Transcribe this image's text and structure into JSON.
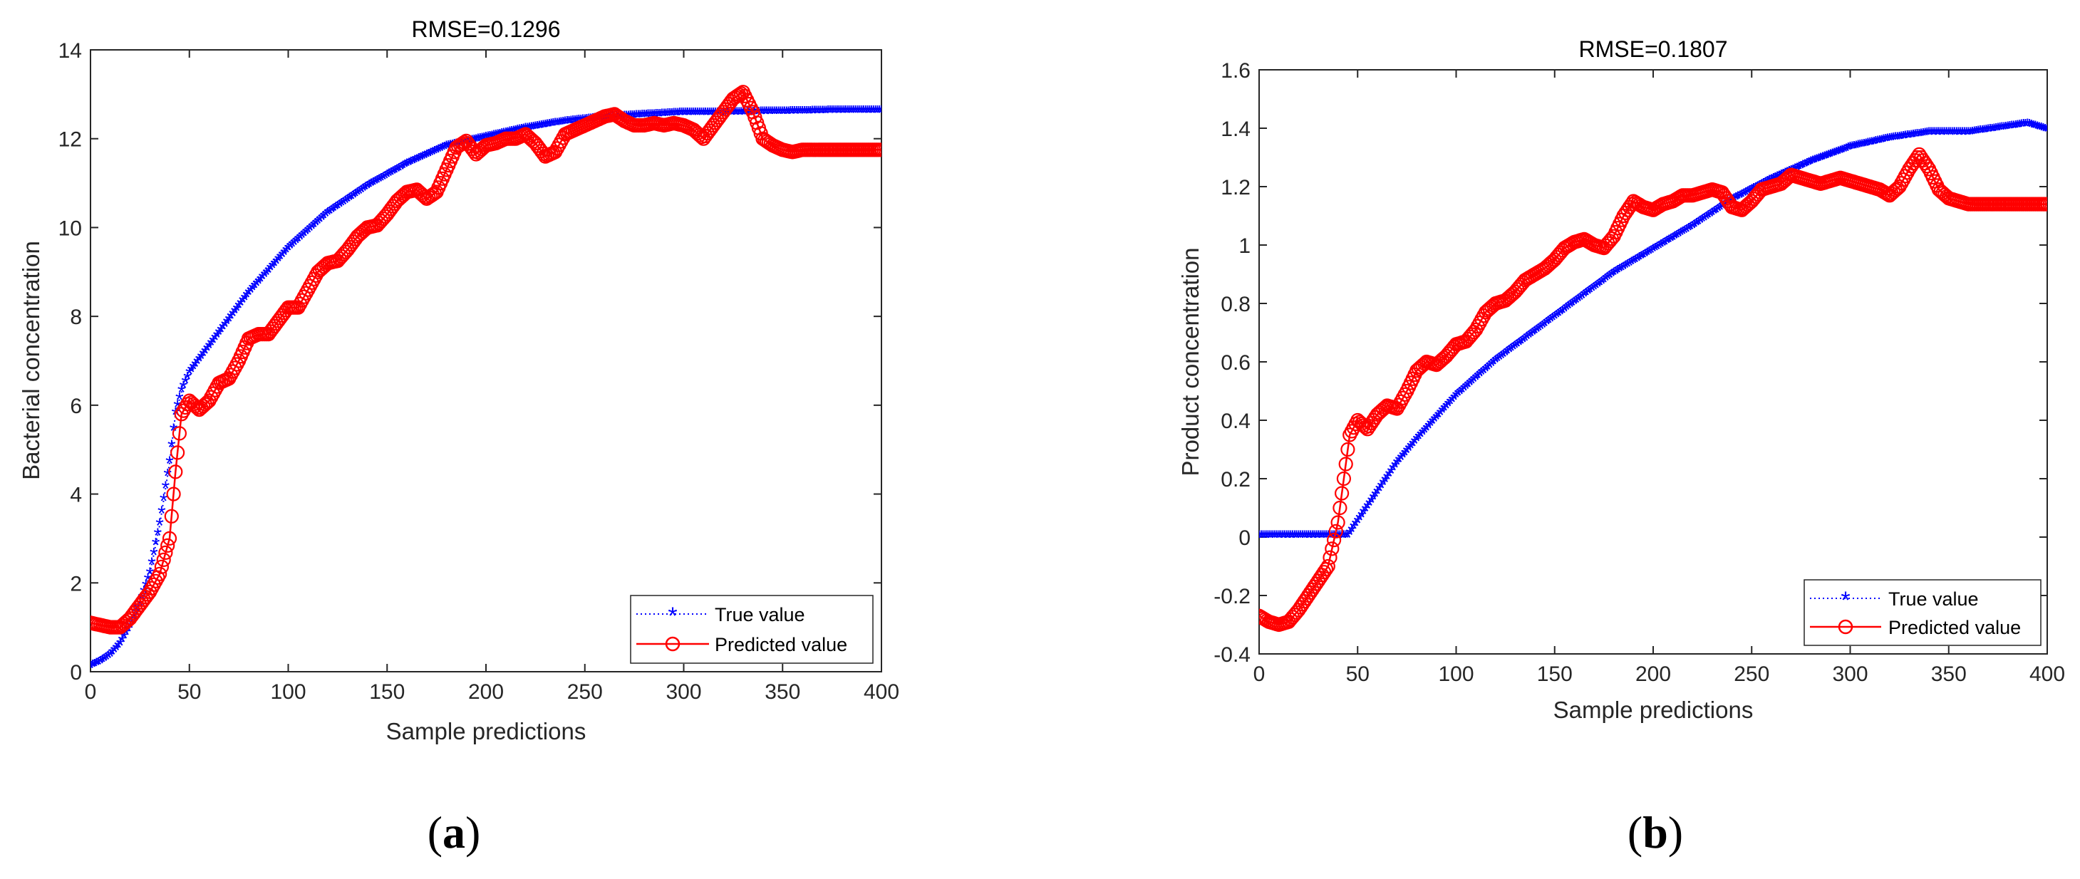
{
  "figure": {
    "captions": [
      {
        "open": "(",
        "letter": "a",
        "close": ")"
      },
      {
        "open": "(",
        "letter": "b",
        "close": ")"
      }
    ]
  },
  "chart_data": [
    {
      "type": "line",
      "title": "RMSE=0.1296",
      "xlabel": "Sample predictions",
      "ylabel": "Bacterial concentration",
      "xlim": [
        0,
        400
      ],
      "ylim": [
        0,
        14
      ],
      "xticks": [
        0,
        50,
        100,
        150,
        200,
        250,
        300,
        350,
        400
      ],
      "yticks": [
        0,
        2,
        4,
        6,
        8,
        10,
        12,
        14
      ],
      "grid": false,
      "legend_position": "bottom-right",
      "series": [
        {
          "name": "True value",
          "color": "#0000ff",
          "marker": "asterisk",
          "line": "dotted",
          "x": [
            0,
            5,
            10,
            15,
            20,
            25,
            30,
            35,
            40,
            43,
            46,
            50,
            60,
            70,
            80,
            90,
            100,
            120,
            140,
            160,
            180,
            200,
            220,
            240,
            260,
            280,
            300,
            320,
            340,
            360,
            380,
            400
          ],
          "y": [
            0.1,
            0.2,
            0.35,
            0.6,
            1.0,
            1.5,
            2.2,
            3.3,
            4.7,
            5.8,
            6.3,
            6.7,
            7.3,
            7.9,
            8.5,
            9.0,
            9.5,
            10.3,
            10.9,
            11.4,
            11.8,
            12.0,
            12.2,
            12.35,
            12.45,
            12.5,
            12.55,
            12.55,
            12.57,
            12.58,
            12.6,
            12.6
          ]
        },
        {
          "name": "Predicted value",
          "color": "#ff0000",
          "marker": "circle",
          "line": "solid",
          "x": [
            0,
            5,
            10,
            15,
            20,
            25,
            30,
            35,
            40,
            43,
            46,
            50,
            55,
            60,
            65,
            70,
            75,
            80,
            85,
            90,
            95,
            100,
            105,
            110,
            115,
            120,
            125,
            130,
            135,
            140,
            145,
            150,
            155,
            160,
            165,
            170,
            175,
            180,
            185,
            190,
            195,
            200,
            205,
            210,
            215,
            220,
            225,
            230,
            235,
            240,
            245,
            250,
            255,
            260,
            265,
            270,
            275,
            280,
            285,
            290,
            295,
            300,
            305,
            310,
            315,
            320,
            325,
            330,
            335,
            340,
            345,
            350,
            355,
            360,
            365,
            370,
            375,
            380,
            385,
            390,
            395,
            400
          ],
          "y": [
            1.1,
            1.05,
            1.0,
            1.0,
            1.2,
            1.5,
            1.8,
            2.2,
            3.0,
            4.5,
            5.8,
            6.1,
            5.9,
            6.1,
            6.5,
            6.6,
            7.0,
            7.5,
            7.6,
            7.6,
            7.9,
            8.2,
            8.2,
            8.6,
            9.0,
            9.2,
            9.25,
            9.5,
            9.8,
            10.0,
            10.05,
            10.3,
            10.6,
            10.8,
            10.85,
            10.65,
            10.8,
            11.3,
            11.8,
            11.95,
            11.65,
            11.85,
            11.9,
            12.0,
            12.0,
            12.1,
            11.9,
            11.6,
            11.7,
            12.1,
            12.2,
            12.3,
            12.4,
            12.5,
            12.55,
            12.4,
            12.3,
            12.3,
            12.35,
            12.3,
            12.35,
            12.3,
            12.2,
            12.0,
            12.3,
            12.6,
            12.9,
            13.05,
            12.6,
            12.0,
            11.85,
            11.75,
            11.7,
            11.75,
            11.75,
            11.75,
            11.75,
            11.75,
            11.75,
            11.75,
            11.75,
            11.75
          ]
        }
      ]
    },
    {
      "type": "line",
      "title": "RMSE=0.1807",
      "xlabel": "Sample predictions",
      "ylabel": "Product concentration",
      "xlim": [
        0,
        400
      ],
      "ylim": [
        -0.4,
        1.6
      ],
      "xticks": [
        0,
        50,
        100,
        150,
        200,
        250,
        300,
        350,
        400
      ],
      "yticks": [
        -0.4,
        -0.2,
        0,
        0.2,
        0.4,
        0.6,
        0.8,
        1,
        1.2,
        1.4,
        1.6
      ],
      "grid": false,
      "legend_position": "bottom-right",
      "series": [
        {
          "name": "True value",
          "color": "#0000ff",
          "marker": "asterisk",
          "line": "dotted",
          "x": [
            0,
            10,
            20,
            30,
            40,
            45,
            50,
            60,
            70,
            80,
            100,
            120,
            140,
            160,
            180,
            200,
            220,
            240,
            260,
            280,
            300,
            320,
            340,
            360,
            380,
            390,
            400
          ],
          "y": [
            0,
            0,
            0,
            0,
            0,
            0.0,
            0.05,
            0.15,
            0.25,
            0.33,
            0.48,
            0.6,
            0.7,
            0.8,
            0.9,
            0.98,
            1.06,
            1.15,
            1.22,
            1.28,
            1.33,
            1.36,
            1.38,
            1.38,
            1.4,
            1.41,
            1.39
          ]
        },
        {
          "name": "Predicted value",
          "color": "#ff0000",
          "marker": "circle",
          "line": "solid",
          "x": [
            0,
            5,
            10,
            15,
            20,
            25,
            30,
            35,
            40,
            43,
            46,
            50,
            55,
            60,
            65,
            70,
            75,
            80,
            85,
            90,
            95,
            100,
            105,
            110,
            115,
            120,
            125,
            130,
            135,
            140,
            145,
            150,
            155,
            160,
            165,
            170,
            175,
            180,
            185,
            190,
            195,
            200,
            205,
            210,
            215,
            220,
            225,
            230,
            235,
            240,
            245,
            250,
            255,
            260,
            265,
            270,
            275,
            280,
            285,
            290,
            295,
            300,
            305,
            310,
            315,
            320,
            325,
            330,
            335,
            340,
            345,
            350,
            355,
            360,
            365,
            370,
            375,
            380,
            385,
            390,
            395,
            400
          ],
          "y": [
            -0.27,
            -0.29,
            -0.3,
            -0.29,
            -0.25,
            -0.2,
            -0.15,
            -0.1,
            0.05,
            0.2,
            0.35,
            0.4,
            0.37,
            0.42,
            0.45,
            0.44,
            0.5,
            0.57,
            0.6,
            0.59,
            0.62,
            0.66,
            0.67,
            0.71,
            0.77,
            0.8,
            0.81,
            0.84,
            0.88,
            0.9,
            0.92,
            0.95,
            0.99,
            1.01,
            1.02,
            1.0,
            0.99,
            1.03,
            1.1,
            1.15,
            1.13,
            1.12,
            1.14,
            1.15,
            1.17,
            1.17,
            1.18,
            1.19,
            1.18,
            1.13,
            1.12,
            1.15,
            1.19,
            1.2,
            1.21,
            1.24,
            1.23,
            1.22,
            1.21,
            1.22,
            1.23,
            1.22,
            1.21,
            1.2,
            1.19,
            1.17,
            1.2,
            1.26,
            1.31,
            1.26,
            1.19,
            1.16,
            1.15,
            1.14,
            1.14,
            1.14,
            1.14,
            1.14,
            1.14,
            1.14,
            1.14,
            1.14
          ]
        }
      ]
    }
  ]
}
